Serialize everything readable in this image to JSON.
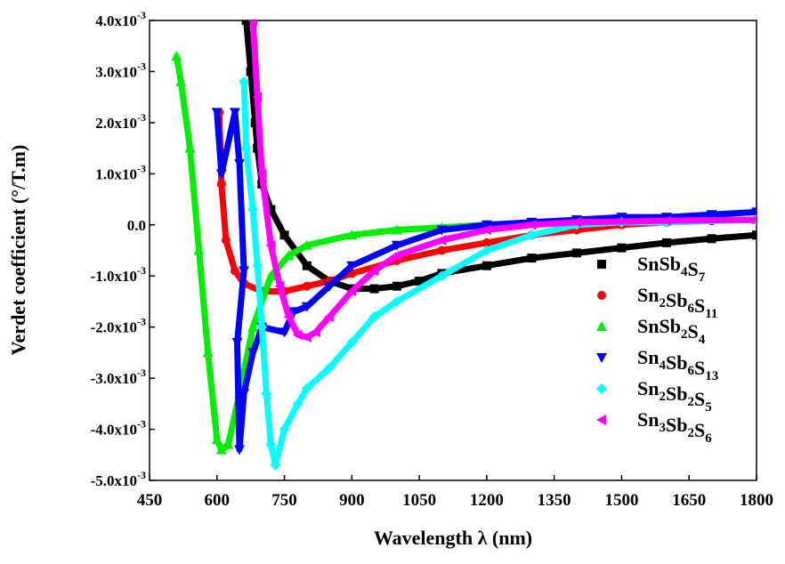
{
  "chart_data": {
    "type": "scatter",
    "x_label": "Wavelength λ (nm)",
    "y_label": "Verdet coefficient (°/T.m)",
    "xlim": [
      450,
      1800
    ],
    "xticks": [
      450,
      600,
      750,
      900,
      1050,
      1200,
      1350,
      1500,
      1650,
      1800
    ],
    "ylim": [
      -0.005,
      0.004
    ],
    "yticks": [
      {
        "value": -0.005,
        "label": "-5.0x10-3"
      },
      {
        "value": -0.004,
        "label": "-4.0x10-3"
      },
      {
        "value": -0.003,
        "label": "-3.0x10-3"
      },
      {
        "value": -0.002,
        "label": "-2.0x10-3"
      },
      {
        "value": -0.001,
        "label": "-1.0x10-3"
      },
      {
        "value": 0,
        "label": "0.0"
      },
      {
        "value": 0.001,
        "label": "1.0x10-3"
      },
      {
        "value": 0.002,
        "label": "2.0x10-3"
      },
      {
        "value": 0.003,
        "label": "3.0x10-3"
      },
      {
        "value": 0.004,
        "label": "4.0x10-3"
      }
    ],
    "legend": "right",
    "series": [
      {
        "name": "SnSb4S7",
        "color": "#000000",
        "marker": "square",
        "x": [
          665,
          675,
          685,
          690,
          700,
          720,
          750,
          800,
          850,
          900,
          950,
          1000,
          1050,
          1100,
          1200,
          1300,
          1400,
          1500,
          1600,
          1700,
          1800
        ],
        "y": [
          0.004,
          0.003,
          0.002,
          0.0015,
          0.0008,
          0.0003,
          -0.0002,
          -0.0008,
          -0.0011,
          -0.00125,
          -0.00125,
          -0.0012,
          -0.0011,
          -0.00095,
          -0.0008,
          -0.00065,
          -0.00055,
          -0.00045,
          -0.00035,
          -0.00027,
          -0.0002
        ]
      },
      {
        "name": "Sn2Sb6S11",
        "color": "#ff0000",
        "marker": "circle",
        "x": [
          605,
          610,
          620,
          640,
          660,
          700,
          750,
          800,
          850,
          900,
          1000,
          1100,
          1200,
          1300,
          1400,
          1500,
          1600,
          1700,
          1800
        ],
        "y": [
          0.0022,
          0.0008,
          -0.0003,
          -0.0009,
          -0.00115,
          -0.0013,
          -0.0013,
          -0.0012,
          -0.0011,
          -0.00095,
          -0.0007,
          -0.0005,
          -0.00035,
          -0.0002,
          -0.0001,
          0,
          5e-05,
          8e-05,
          0.0001
        ]
      },
      {
        "name": "SnSb2S4",
        "color": "#00ee00",
        "marker": "triangle-up",
        "x": [
          510,
          520,
          540,
          560,
          580,
          600,
          610,
          625,
          650,
          680,
          720,
          760,
          800,
          900,
          1000,
          1100,
          1200,
          1400,
          1600,
          1800
        ],
        "y": [
          0.0033,
          0.0028,
          0.0015,
          -0.0005,
          -0.0025,
          -0.0042,
          -0.0044,
          -0.0043,
          -0.0033,
          -0.002,
          -0.001,
          -0.0006,
          -0.0004,
          -0.0002,
          -0.0001,
          -5e-05,
          0,
          5e-05,
          8e-05,
          0.0001
        ]
      },
      {
        "name": "Sn4Sb6S13",
        "color": "#0000ff",
        "marker": "triangle-down",
        "x": [
          600,
          610,
          640,
          650,
          660,
          645,
          650,
          660,
          680,
          700,
          750,
          770,
          800,
          850,
          900,
          1000,
          1100,
          1200,
          1300,
          1400,
          1500,
          1600,
          1700,
          1800
        ],
        "y": [
          0.0022,
          0.001,
          0.0022,
          0.0012,
          -0.0009,
          -0.0023,
          -0.0044,
          -0.0033,
          -0.0025,
          -0.002,
          -0.0021,
          -0.0017,
          -0.0016,
          -0.0012,
          -0.0008,
          -0.0004,
          -0.0001,
          0,
          5e-05,
          0.0001,
          0.00015,
          0.00015,
          0.0002,
          0.00025
        ]
      },
      {
        "name": "Sn2Sb2S5",
        "color": "#00ffff",
        "marker": "diamond",
        "x": [
          660,
          665,
          680,
          690,
          700,
          710,
          720,
          730,
          750,
          780,
          800,
          850,
          900,
          950,
          1000,
          1100,
          1200,
          1300,
          1400,
          1500,
          1600,
          1800
        ],
        "y": [
          0.0028,
          0.0015,
          0.0003,
          -0.0008,
          -0.002,
          -0.0033,
          -0.0043,
          -0.0047,
          -0.004,
          -0.0035,
          -0.0032,
          -0.0028,
          -0.0023,
          -0.0018,
          -0.0015,
          -0.001,
          -0.0005,
          -0.0002,
          0,
          5e-05,
          5e-05,
          0.0001
        ]
      },
      {
        "name": "Sn3Sb2S6",
        "color": "#ff00ff",
        "marker": "triangle-left",
        "x": [
          680,
          690,
          700,
          720,
          740,
          760,
          780,
          800,
          820,
          850,
          900,
          950,
          1000,
          1100,
          1200,
          1300,
          1400,
          1600,
          1800
        ],
        "y": [
          0.004,
          0.0025,
          0.001,
          -0.0004,
          -0.0012,
          -0.0018,
          -0.00215,
          -0.0022,
          -0.0021,
          -0.0018,
          -0.0013,
          -0.0009,
          -0.0006,
          -0.0003,
          -0.0001,
          0,
          5e-05,
          8e-05,
          0.0001
        ]
      }
    ]
  }
}
